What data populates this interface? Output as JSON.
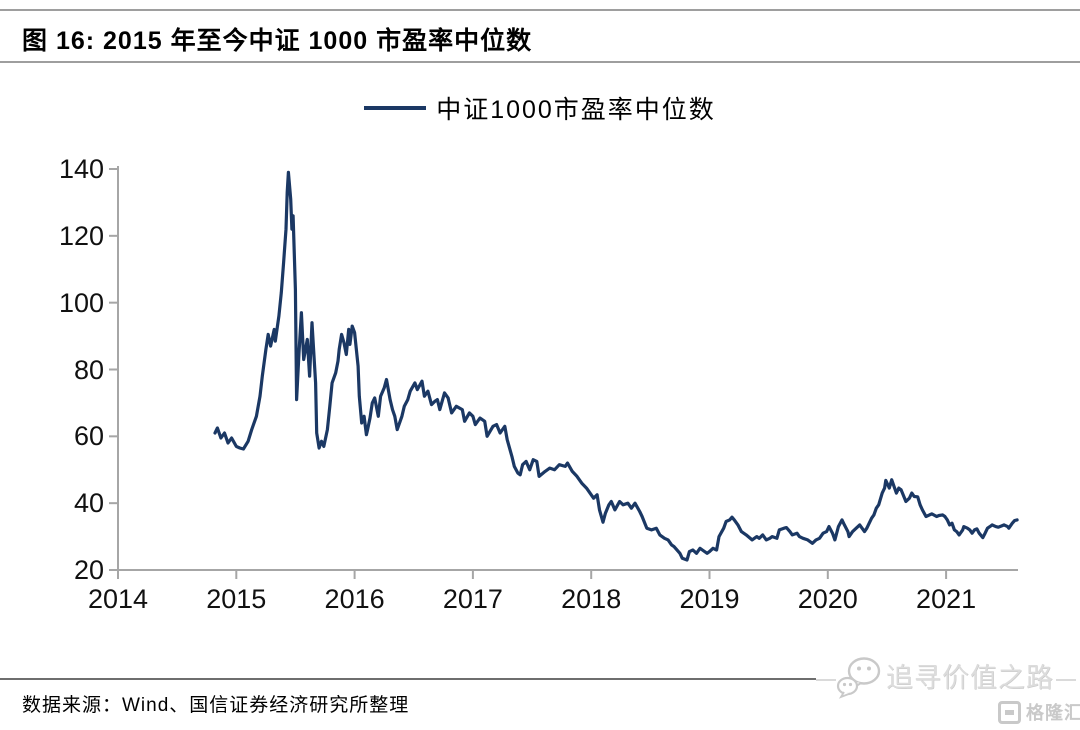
{
  "header": {
    "title": "图 16: 2015 年至今中证 1000 市盈率中位数"
  },
  "footer": {
    "source": "数据来源：Wind、国信证券经济研究所整理"
  },
  "watermark": {
    "text": "追寻价值之路",
    "brand": "格隆汇",
    "icon": "wechat-icon"
  },
  "colors": {
    "line": "#1b3864",
    "axis": "#a6a6a6",
    "tick_text": "#111111",
    "watermark": "#d6d6d6"
  },
  "chart_data": {
    "type": "line",
    "title": "2015年至今中证1000市盈率中位数",
    "legend_position": "top-center",
    "grid": false,
    "x_axis": {
      "label": "",
      "min": 2014,
      "max": 2021.65,
      "ticks": [
        2014,
        2015,
        2016,
        2017,
        2018,
        2019,
        2020,
        2021
      ]
    },
    "y_axis": {
      "label": "",
      "min": 20,
      "max": 140,
      "ticks": [
        20,
        40,
        60,
        80,
        100,
        120,
        140
      ]
    },
    "series": [
      {
        "name": "中证1000市盈率中位数",
        "color": "#1b3864",
        "points": [
          [
            2014.82,
            61
          ],
          [
            2014.84,
            62.5
          ],
          [
            2014.87,
            59.5
          ],
          [
            2014.9,
            61
          ],
          [
            2014.93,
            58
          ],
          [
            2014.96,
            59.5
          ],
          [
            2015.0,
            57
          ],
          [
            2015.03,
            56.5
          ],
          [
            2015.06,
            56.2
          ],
          [
            2015.1,
            58.5
          ],
          [
            2015.13,
            62
          ],
          [
            2015.17,
            66
          ],
          [
            2015.2,
            72
          ],
          [
            2015.22,
            78
          ],
          [
            2015.25,
            86
          ],
          [
            2015.27,
            90.5
          ],
          [
            2015.29,
            87
          ],
          [
            2015.32,
            92
          ],
          [
            2015.33,
            88.5
          ],
          [
            2015.36,
            96
          ],
          [
            2015.38,
            103
          ],
          [
            2015.4,
            112
          ],
          [
            2015.42,
            122
          ],
          [
            2015.43,
            133
          ],
          [
            2015.44,
            139
          ],
          [
            2015.46,
            131
          ],
          [
            2015.47,
            122
          ],
          [
            2015.48,
            126
          ],
          [
            2015.5,
            104
          ],
          [
            2015.51,
            71
          ],
          [
            2015.53,
            85
          ],
          [
            2015.55,
            97
          ],
          [
            2015.57,
            83
          ],
          [
            2015.6,
            89
          ],
          [
            2015.62,
            78
          ],
          [
            2015.64,
            94
          ],
          [
            2015.67,
            76
          ],
          [
            2015.68,
            61
          ],
          [
            2015.7,
            56.5
          ],
          [
            2015.72,
            58.5
          ],
          [
            2015.74,
            57
          ],
          [
            2015.77,
            62
          ],
          [
            2015.79,
            69
          ],
          [
            2015.81,
            76
          ],
          [
            2015.84,
            79
          ],
          [
            2015.86,
            82.5
          ],
          [
            2015.87,
            86
          ],
          [
            2015.89,
            90.5
          ],
          [
            2015.91,
            88
          ],
          [
            2015.93,
            84.5
          ],
          [
            2015.95,
            92
          ],
          [
            2015.96,
            87.5
          ],
          [
            2015.98,
            93
          ],
          [
            2016.0,
            91
          ],
          [
            2016.03,
            81
          ],
          [
            2016.04,
            72
          ],
          [
            2016.06,
            64
          ],
          [
            2016.08,
            66
          ],
          [
            2016.1,
            60.5
          ],
          [
            2016.11,
            62
          ],
          [
            2016.13,
            65.5
          ],
          [
            2016.15,
            70
          ],
          [
            2016.17,
            71.5
          ],
          [
            2016.2,
            66
          ],
          [
            2016.22,
            72
          ],
          [
            2016.25,
            74.5
          ],
          [
            2016.27,
            77
          ],
          [
            2016.3,
            71
          ],
          [
            2016.32,
            68
          ],
          [
            2016.34,
            66
          ],
          [
            2016.36,
            62
          ],
          [
            2016.4,
            66
          ],
          [
            2016.42,
            69
          ],
          [
            2016.45,
            71
          ],
          [
            2016.47,
            73.5
          ],
          [
            2016.51,
            76
          ],
          [
            2016.53,
            74
          ],
          [
            2016.57,
            76.5
          ],
          [
            2016.59,
            72
          ],
          [
            2016.62,
            73.5
          ],
          [
            2016.65,
            69.5
          ],
          [
            2016.68,
            70.5
          ],
          [
            2016.7,
            71
          ],
          [
            2016.72,
            68
          ],
          [
            2016.76,
            73
          ],
          [
            2016.79,
            71.5
          ],
          [
            2016.82,
            67
          ],
          [
            2016.86,
            69
          ],
          [
            2016.91,
            68
          ],
          [
            2016.93,
            64.5
          ],
          [
            2016.97,
            67
          ],
          [
            2017.0,
            66
          ],
          [
            2017.02,
            63.5
          ],
          [
            2017.06,
            65.5
          ],
          [
            2017.1,
            64.5
          ],
          [
            2017.12,
            60
          ],
          [
            2017.17,
            63
          ],
          [
            2017.2,
            63.5
          ],
          [
            2017.23,
            61
          ],
          [
            2017.27,
            63
          ],
          [
            2017.29,
            59
          ],
          [
            2017.33,
            54
          ],
          [
            2017.35,
            51
          ],
          [
            2017.38,
            49
          ],
          [
            2017.4,
            48.5
          ],
          [
            2017.42,
            51.5
          ],
          [
            2017.45,
            52.5
          ],
          [
            2017.48,
            50
          ],
          [
            2017.51,
            53
          ],
          [
            2017.54,
            52.5
          ],
          [
            2017.56,
            48
          ],
          [
            2017.61,
            49.5
          ],
          [
            2017.65,
            50.5
          ],
          [
            2017.69,
            50
          ],
          [
            2017.73,
            51.5
          ],
          [
            2017.78,
            51
          ],
          [
            2017.8,
            52
          ],
          [
            2017.84,
            49.5
          ],
          [
            2017.88,
            48
          ],
          [
            2017.92,
            46
          ],
          [
            2017.96,
            44.5
          ],
          [
            2017.99,
            43
          ],
          [
            2018.02,
            41.5
          ],
          [
            2018.05,
            42.5
          ],
          [
            2018.07,
            38
          ],
          [
            2018.1,
            34.3
          ],
          [
            2018.12,
            37
          ],
          [
            2018.15,
            39.5
          ],
          [
            2018.17,
            40.5
          ],
          [
            2018.2,
            38
          ],
          [
            2018.24,
            40.5
          ],
          [
            2018.27,
            39.5
          ],
          [
            2018.31,
            40
          ],
          [
            2018.34,
            38.5
          ],
          [
            2018.37,
            40
          ],
          [
            2018.41,
            37.5
          ],
          [
            2018.43,
            36
          ],
          [
            2018.47,
            32.5
          ],
          [
            2018.51,
            32
          ],
          [
            2018.55,
            32.5
          ],
          [
            2018.58,
            30.5
          ],
          [
            2018.62,
            29.5
          ],
          [
            2018.65,
            29
          ],
          [
            2018.68,
            27.5
          ],
          [
            2018.7,
            27
          ],
          [
            2018.75,
            25
          ],
          [
            2018.77,
            23.5
          ],
          [
            2018.81,
            23
          ],
          [
            2018.83,
            25.5
          ],
          [
            2018.86,
            26
          ],
          [
            2018.89,
            25
          ],
          [
            2018.92,
            26.5
          ],
          [
            2018.94,
            26
          ],
          [
            2018.98,
            25
          ],
          [
            2019.0,
            25.5
          ],
          [
            2019.03,
            26.5
          ],
          [
            2019.06,
            26
          ],
          [
            2019.08,
            30
          ],
          [
            2019.12,
            32.5
          ],
          [
            2019.14,
            34.5
          ],
          [
            2019.17,
            35
          ],
          [
            2019.19,
            35.8
          ],
          [
            2019.21,
            35
          ],
          [
            2019.24,
            33.5
          ],
          [
            2019.27,
            31.5
          ],
          [
            2019.31,
            30.5
          ],
          [
            2019.36,
            29
          ],
          [
            2019.4,
            30
          ],
          [
            2019.42,
            29.5
          ],
          [
            2019.45,
            30.5
          ],
          [
            2019.48,
            29
          ],
          [
            2019.51,
            29.5
          ],
          [
            2019.53,
            30
          ],
          [
            2019.57,
            29.5
          ],
          [
            2019.59,
            32
          ],
          [
            2019.63,
            32.5
          ],
          [
            2019.65,
            32.7
          ],
          [
            2019.68,
            31.5
          ],
          [
            2019.7,
            30.5
          ],
          [
            2019.74,
            31
          ],
          [
            2019.76,
            30
          ],
          [
            2019.79,
            29.5
          ],
          [
            2019.83,
            29
          ],
          [
            2019.87,
            28
          ],
          [
            2019.9,
            29
          ],
          [
            2019.93,
            29.5
          ],
          [
            2019.96,
            31
          ],
          [
            2019.99,
            31.5
          ],
          [
            2020.01,
            33
          ],
          [
            2020.04,
            31
          ],
          [
            2020.06,
            29
          ],
          [
            2020.09,
            33
          ],
          [
            2020.12,
            35
          ],
          [
            2020.14,
            33.5
          ],
          [
            2020.17,
            31.5
          ],
          [
            2020.18,
            30
          ],
          [
            2020.21,
            31.5
          ],
          [
            2020.24,
            32.5
          ],
          [
            2020.27,
            33.5
          ],
          [
            2020.31,
            31.5
          ],
          [
            2020.33,
            32.5
          ],
          [
            2020.37,
            35.5
          ],
          [
            2020.39,
            36.5
          ],
          [
            2020.41,
            38.5
          ],
          [
            2020.43,
            39.5
          ],
          [
            2020.46,
            43
          ],
          [
            2020.48,
            44.5
          ],
          [
            2020.49,
            46.8
          ],
          [
            2020.52,
            44.5
          ],
          [
            2020.54,
            47
          ],
          [
            2020.58,
            43
          ],
          [
            2020.6,
            44.5
          ],
          [
            2020.62,
            44
          ],
          [
            2020.66,
            40.5
          ],
          [
            2020.69,
            41.5
          ],
          [
            2020.71,
            43
          ],
          [
            2020.73,
            42
          ],
          [
            2020.76,
            41.9
          ],
          [
            2020.78,
            39.5
          ],
          [
            2020.8,
            38
          ],
          [
            2020.83,
            36
          ],
          [
            2020.86,
            36.5
          ],
          [
            2020.88,
            36.8
          ],
          [
            2020.92,
            36
          ],
          [
            2020.94,
            36.3
          ],
          [
            2020.97,
            36.5
          ],
          [
            2020.99,
            36
          ],
          [
            2021.01,
            35
          ],
          [
            2021.03,
            33.5
          ],
          [
            2021.05,
            34
          ],
          [
            2021.07,
            32
          ],
          [
            2021.09,
            31.5
          ],
          [
            2021.11,
            30.5
          ],
          [
            2021.14,
            32
          ],
          [
            2021.15,
            33
          ],
          [
            2021.18,
            32.5
          ],
          [
            2021.2,
            32
          ],
          [
            2021.22,
            31
          ],
          [
            2021.24,
            32
          ],
          [
            2021.26,
            32.3
          ],
          [
            2021.28,
            31
          ],
          [
            2021.31,
            29.7
          ],
          [
            2021.33,
            31
          ],
          [
            2021.35,
            32.5
          ],
          [
            2021.37,
            33
          ],
          [
            2021.39,
            33.5
          ],
          [
            2021.42,
            33
          ],
          [
            2021.44,
            32.8
          ],
          [
            2021.47,
            33.2
          ],
          [
            2021.49,
            33.5
          ],
          [
            2021.52,
            33
          ],
          [
            2021.53,
            32.5
          ],
          [
            2021.56,
            34
          ],
          [
            2021.58,
            34.8
          ],
          [
            2021.6,
            35
          ]
        ]
      }
    ]
  }
}
